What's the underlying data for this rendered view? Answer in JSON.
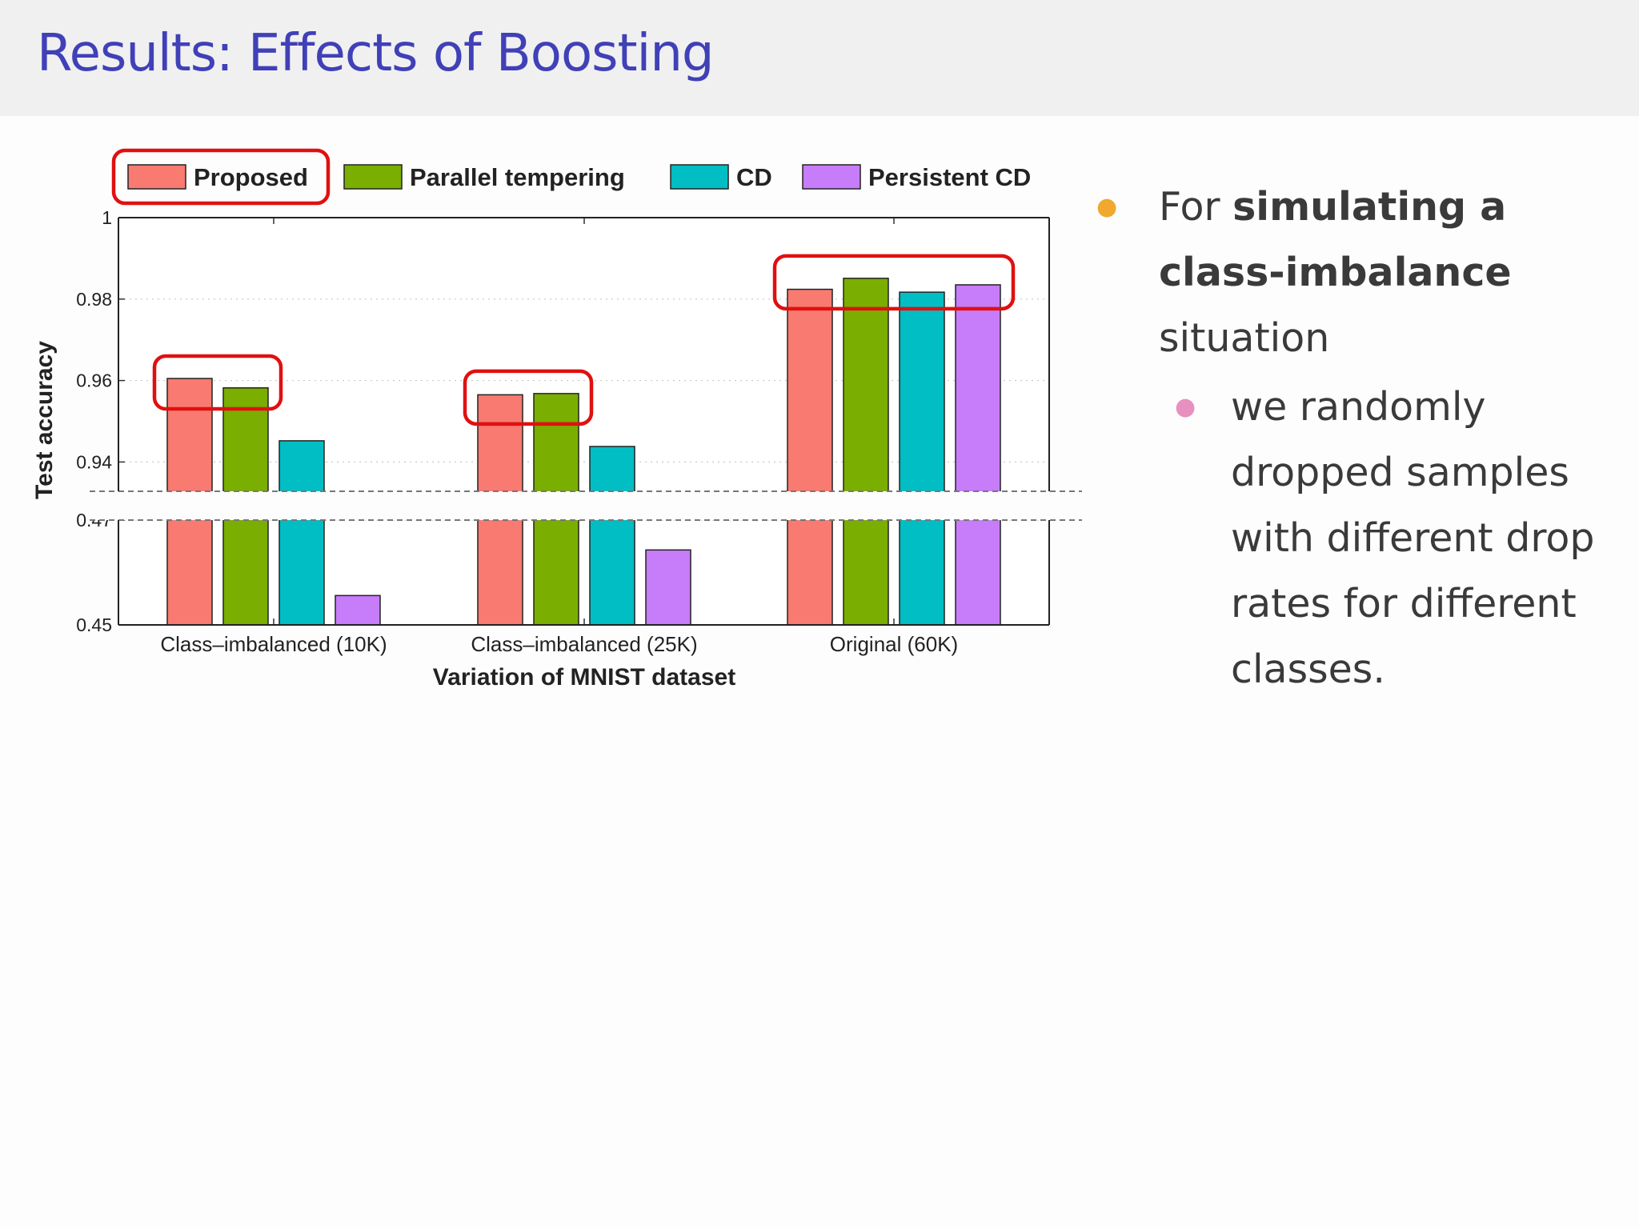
{
  "slide": {
    "title": "Results: Effects of Boosting",
    "bullet1": {
      "prefix": "For ",
      "bold": "simulating a class-imbalance",
      "suffix": " situation"
    },
    "bullet2": "we randomly dropped samples with different drop rates for different classes."
  },
  "colors": {
    "title": "#4040b8",
    "highlight": "#e01010",
    "bullet1_dot": "#f0a830",
    "bullet2_dot": "#e890c0"
  },
  "chart_data": {
    "type": "bar",
    "xlabel": "Variation of MNIST dataset",
    "ylabel": "Test accuracy",
    "categories": [
      "Class–imbalanced (10K)",
      "Class–imbalanced (25K)",
      "Original (60K)"
    ],
    "series": [
      {
        "name": "Proposed",
        "color": "#f87a70",
        "values": [
          0.9605,
          0.9565,
          0.9824
        ]
      },
      {
        "name": "Parallel tempering",
        "color": "#7aae00",
        "values": [
          0.9582,
          0.9568,
          0.9851
        ]
      },
      {
        "name": "CD",
        "color": "#00bec4",
        "values": [
          0.9452,
          0.9438,
          0.9817
        ]
      },
      {
        "name": "Persistent CD",
        "color": "#c77cfa",
        "values": [
          0.4556,
          0.4643,
          0.9835
        ]
      }
    ],
    "y_axis_broken": true,
    "upper_segment": {
      "ylim": [
        0.933,
        1.0
      ],
      "ticks": [
        "1",
        "0.98",
        "0.96",
        "0.94"
      ]
    },
    "lower_segment": {
      "ylim": [
        0.45,
        0.47
      ],
      "ticks": [
        "0.47",
        "0.45"
      ]
    },
    "grid": "horizontal dotted",
    "legend_position": "top",
    "highlighted": [
      "Proposed legend entry",
      "Class–imbalanced (10K): Proposed, Parallel tempering",
      "Class–imbalanced (25K): Proposed, Parallel tempering",
      "Original (60K): all bars"
    ]
  }
}
